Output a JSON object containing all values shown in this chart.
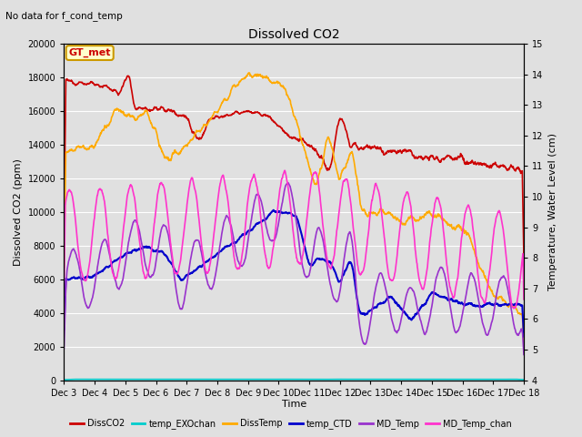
{
  "title": "Dissolved CO2",
  "subtitle": "No data for f_cond_temp",
  "xlabel": "Time",
  "ylabel_left": "Dissolved CO2 (ppm)",
  "ylabel_right": "Temperature, Water Level (cm)",
  "ylim_left": [
    0,
    20000
  ],
  "ylim_right": [
    4.0,
    15.0
  ],
  "yticks_left": [
    0,
    2000,
    4000,
    6000,
    8000,
    10000,
    12000,
    14000,
    16000,
    18000,
    20000
  ],
  "yticks_right": [
    4.0,
    5.0,
    6.0,
    7.0,
    8.0,
    9.0,
    10.0,
    11.0,
    12.0,
    13.0,
    14.0,
    15.0
  ],
  "bg_color": "#e0e0e0",
  "plot_bg_color": "#e0e0e0",
  "grid_color": "#ffffff",
  "annotation_box": "GT_met",
  "annotation_facecolor": "#ffffcc",
  "annotation_edgecolor": "#cc9900",
  "series": {
    "DissCO2": {
      "color": "#cc0000",
      "lw": 1.2
    },
    "temp_EXOchan": {
      "color": "#00cccc",
      "lw": 1.2
    },
    "DissTemp": {
      "color": "#ffaa00",
      "lw": 1.2
    },
    "temp_CTD": {
      "color": "#0000cc",
      "lw": 1.5
    },
    "MD_Temp": {
      "color": "#9933cc",
      "lw": 1.2
    },
    "MD_Temp_chan": {
      "color": "#ff33cc",
      "lw": 1.2
    }
  },
  "xtick_labels": [
    "Dec 3",
    "Dec 4",
    "Dec 5",
    "Dec 6",
    "Dec 7",
    "Dec 8",
    "Dec 9",
    "Dec 10",
    "Dec 11",
    "Dec 12",
    "Dec 13",
    "Dec 14",
    "Dec 15",
    "Dec 16",
    "Dec 17",
    "Dec 18"
  ]
}
